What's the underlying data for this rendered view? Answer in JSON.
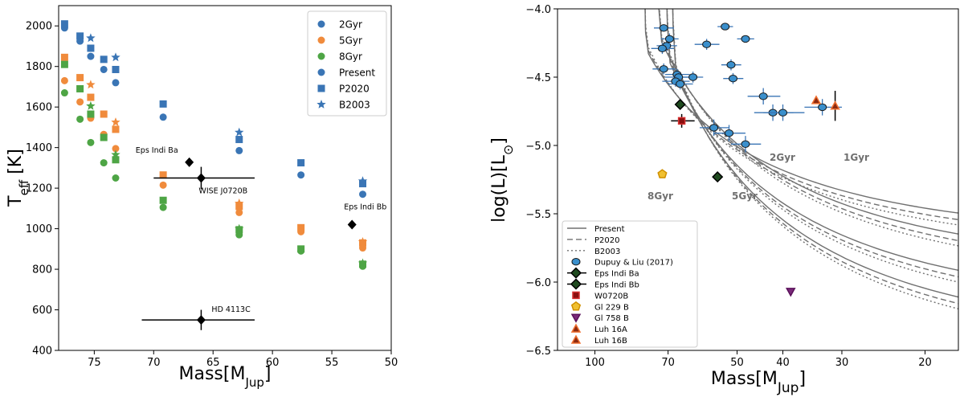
{
  "chart_data": [
    {
      "type": "scatter",
      "xlabel": "Mass[M_Jup]",
      "ylabel": "T_eff [K]",
      "xlim": [
        78,
        50
      ],
      "ylim": [
        400,
        2100
      ],
      "xticks": [
        75,
        70,
        65,
        60,
        55,
        50
      ],
      "yticks": [
        400,
        600,
        800,
        1000,
        1200,
        1400,
        1600,
        1800,
        2000
      ],
      "legend_placement": "top-right",
      "grid": false,
      "colors": {
        "2Gyr": "#3a75b5",
        "5Gyr": "#f08b3c",
        "8Gyr": "#4ea545"
      },
      "series": [
        {
          "name": "2Gyr",
          "marker": "circle",
          "color": "#3a75b5",
          "points": [
            [
              77.5,
              1990
            ],
            [
              76.2,
              1925
            ],
            [
              75.3,
              1850
            ],
            [
              74.2,
              1785
            ],
            [
              73.2,
              1720
            ],
            [
              69.2,
              1550
            ],
            [
              62.8,
              1385
            ],
            [
              57.6,
              1265
            ],
            [
              52.4,
              1170
            ]
          ]
        },
        {
          "name": "5Gyr",
          "marker": "circle",
          "color": "#f08b3c",
          "points": [
            [
              77.5,
              1730
            ],
            [
              76.2,
              1625
            ],
            [
              75.3,
              1545
            ],
            [
              74.2,
              1465
            ],
            [
              73.2,
              1395
            ],
            [
              69.2,
              1215
            ],
            [
              62.8,
              1080
            ],
            [
              57.6,
              985
            ],
            [
              52.4,
              905
            ]
          ]
        },
        {
          "name": "8Gyr",
          "marker": "circle",
          "color": "#4ea545",
          "points": [
            [
              77.5,
              1670
            ],
            [
              76.2,
              1540
            ],
            [
              75.3,
              1425
            ],
            [
              74.2,
              1325
            ],
            [
              73.2,
              1250
            ],
            [
              69.2,
              1105
            ],
            [
              62.8,
              970
            ],
            [
              57.6,
              890
            ],
            [
              52.4,
              815
            ]
          ]
        },
        {
          "name": "Present",
          "marker": "circle",
          "color": "#3a75b5",
          "points": []
        },
        {
          "name": "P2020",
          "marker": "square",
          "color": "mixed",
          "points_2gyr": [
            [
              77.5,
              2010
            ],
            [
              76.2,
              1950
            ],
            [
              75.3,
              1890
            ],
            [
              74.2,
              1835
            ],
            [
              73.2,
              1785
            ],
            [
              69.2,
              1615
            ],
            [
              62.8,
              1440
            ],
            [
              57.6,
              1325
            ],
            [
              52.4,
              1222
            ]
          ],
          "points_5gyr": [
            [
              77.5,
              1845
            ],
            [
              76.2,
              1745
            ],
            [
              75.3,
              1648
            ],
            [
              74.2,
              1565
            ],
            [
              73.2,
              1490
            ],
            [
              69.2,
              1265
            ],
            [
              62.8,
              1110
            ],
            [
              57.6,
              1005
            ],
            [
              52.4,
              930
            ]
          ],
          "points_8gyr": [
            [
              77.5,
              1810
            ],
            [
              76.2,
              1690
            ],
            [
              75.3,
              1565
            ],
            [
              74.2,
              1450
            ],
            [
              73.2,
              1340
            ],
            [
              69.2,
              1140
            ],
            [
              62.8,
              995
            ],
            [
              57.6,
              900
            ],
            [
              52.4,
              825
            ]
          ]
        },
        {
          "name": "B2003",
          "marker": "star",
          "color": "mixed",
          "points_2gyr": [
            [
              75.3,
              1940
            ],
            [
              73.2,
              1845
            ],
            [
              62.8,
              1475
            ],
            [
              52.4,
              1235
            ]
          ],
          "points_5gyr": [
            [
              75.3,
              1710
            ],
            [
              73.2,
              1525
            ],
            [
              62.8,
              1125
            ],
            [
              52.4,
              935
            ]
          ],
          "points_8gyr": [
            [
              75.3,
              1605
            ],
            [
              73.2,
              1365
            ],
            [
              62.8,
              1000
            ],
            [
              52.4,
              830
            ]
          ]
        }
      ],
      "objects": [
        {
          "label": "Eps Indi Ba",
          "mass": 67.0,
          "teff": 1328
        },
        {
          "label": "WISE J0720B",
          "mass": 66.0,
          "teff": 1250,
          "xerr": [
            70.0,
            61.5
          ],
          "yerr": [
            1195,
            1305
          ]
        },
        {
          "label": "Eps Indi Bb",
          "mass": 53.3,
          "teff": 1020
        },
        {
          "label": "HD 4113C",
          "mass": 66.0,
          "teff": 550,
          "xerr": [
            71.0,
            61.5
          ],
          "yerr": [
            500,
            600
          ]
        }
      ]
    },
    {
      "type": "scatter",
      "xlabel": "Mass[M_Jup]",
      "ylabel": "log(L)[L_⊙]",
      "x_scale": "log",
      "xlim": [
        120,
        17
      ],
      "ylim": [
        -6.5,
        -4.0
      ],
      "xticks": [
        100,
        70,
        50,
        40,
        30,
        20
      ],
      "yticks": [
        -6.5,
        -6.0,
        -5.5,
        -5.0,
        -4.5,
        -4.0
      ],
      "legend_placement": "bottom-left",
      "grid": false,
      "isochrone_labels": [
        "1Gyr",
        "2Gyr",
        "5Gyr",
        "8Gyr"
      ],
      "legend": [
        "Present",
        "P2020",
        "B2003",
        "Dupuy & Liu (2017)",
        "Eps Indi Ba",
        "Eps Indi Bb",
        "W0720B",
        "Gl 229 B",
        "Gl 758 B",
        "Luh 16A",
        "Luh 16B"
      ],
      "dupuy_liu_2017": [
        [
          71.5,
          -4.14,
          3.5,
          0.0
        ],
        [
          70.5,
          -4.27,
          3.5,
          0.04
        ],
        [
          69.5,
          -4.22,
          3.0,
          0.04
        ],
        [
          72.0,
          -4.29,
          4.0,
          0.04
        ],
        [
          71.5,
          -4.44,
          4.0,
          0.04
        ],
        [
          67.0,
          -4.48,
          4.0,
          0.04
        ],
        [
          66.5,
          -4.5,
          4.5,
          0.04
        ],
        [
          67.5,
          -4.53,
          4.5,
          0.04
        ],
        [
          66.0,
          -4.55,
          4.0,
          0.04
        ],
        [
          62.0,
          -4.5,
          3.0,
          0.04
        ],
        [
          58.0,
          -4.26,
          3.5,
          0.04
        ],
        [
          53.0,
          -4.13,
          2.0,
          0.0
        ],
        [
          48.0,
          -4.22,
          2.0,
          0.0
        ],
        [
          51.5,
          -4.41,
          2.5,
          0.04
        ],
        [
          51.0,
          -4.51,
          2.5,
          0.04
        ],
        [
          44.0,
          -4.64,
          3.5,
          0.06
        ],
        [
          42.0,
          -4.76,
          4.0,
          0.06
        ],
        [
          40.0,
          -4.76,
          4.0,
          0.06
        ],
        [
          33.0,
          -4.72,
          3.0,
          0.06
        ],
        [
          56.0,
          -4.87,
          4.0,
          0.06
        ],
        [
          52.0,
          -4.91,
          4.0,
          0.06
        ],
        [
          48.0,
          -4.99,
          3.5,
          0.06
        ]
      ],
      "objects": [
        {
          "label": "Eps Indi Ba",
          "mass": 66.0,
          "logL": -4.7
        },
        {
          "label": "Eps Indi Bb",
          "mass": 55.0,
          "logL": -5.23
        },
        {
          "label": "W0720B",
          "mass": 65.5,
          "logL": -4.82
        },
        {
          "label": "Gl 229 B",
          "mass": 72.0,
          "logL": -5.21
        },
        {
          "label": "Gl 758 B",
          "mass": 38.5,
          "logL": -6.07
        },
        {
          "label": "Luh 16A",
          "mass": 34.0,
          "logL": -4.67
        },
        {
          "label": "Luh 16B",
          "mass": 31.0,
          "logL": -4.71
        }
      ]
    }
  ]
}
